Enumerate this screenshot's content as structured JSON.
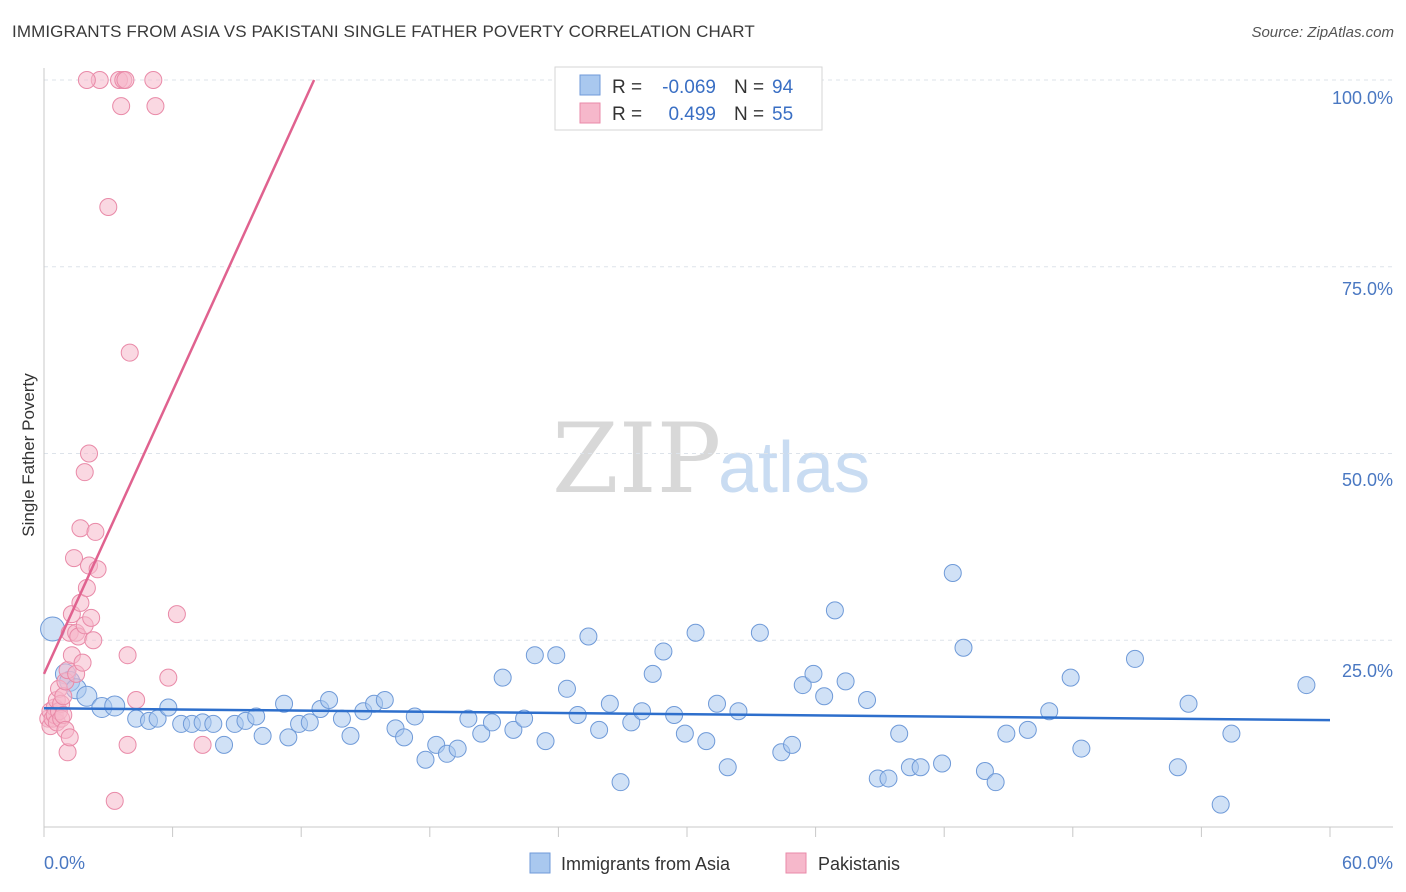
{
  "title": "IMMIGRANTS FROM ASIA VS PAKISTANI SINGLE FATHER POVERTY CORRELATION CHART",
  "source": "Source: ZipAtlas.com",
  "watermark": {
    "zip": "ZIP",
    "atlas": "atlas"
  },
  "colors": {
    "blue_fill": "#a9c8ef",
    "blue_stroke": "#6f9ad8",
    "blue_line": "#2e6fcc",
    "pink_fill": "#f6b8cb",
    "pink_stroke": "#e98aa8",
    "pink_line": "#e0628f",
    "grid": "#dde3ea",
    "tick_text": "#4a78c2"
  },
  "legend": {
    "rows": [
      {
        "r_label": "R =",
        "r_value": "-0.069",
        "n_label": "N =",
        "n_value": "94"
      },
      {
        "r_label": "R =",
        "r_value": "0.499",
        "n_label": "N =",
        "n_value": "55"
      }
    ]
  },
  "chart_data": {
    "type": "scatter",
    "title": "IMMIGRANTS FROM ASIA VS PAKISTANI SINGLE FATHER POVERTY CORRELATION CHART",
    "xlabel": "",
    "ylabel": "Single Father Poverty",
    "xlim": [
      0,
      60
    ],
    "ylim": [
      0,
      100
    ],
    "x_tick_labels": [
      "0.0%",
      "60.0%"
    ],
    "y_tick_labels": [
      "25.0%",
      "50.0%",
      "75.0%",
      "100.0%"
    ],
    "y_ticks": [
      25,
      50,
      75,
      100
    ],
    "legend_position": "bottom-center",
    "series": [
      {
        "name": "Immigrants from Asia",
        "r": -0.069,
        "n": 94,
        "trend": {
          "x": [
            0,
            60
          ],
          "y": [
            15.9,
            14.3
          ]
        },
        "points": [
          [
            0.4,
            26.5
          ],
          [
            1.0,
            20.5
          ],
          [
            1.2,
            19.5
          ],
          [
            1.5,
            18.5
          ],
          [
            2.0,
            17.5
          ],
          [
            2.7,
            16.0
          ],
          [
            3.3,
            16.2
          ],
          [
            4.3,
            14.5
          ],
          [
            4.9,
            14.2
          ],
          [
            5.3,
            14.5
          ],
          [
            5.8,
            16.0
          ],
          [
            6.4,
            13.8
          ],
          [
            6.9,
            13.8
          ],
          [
            7.4,
            14.0
          ],
          [
            7.9,
            13.8
          ],
          [
            8.4,
            11.0
          ],
          [
            8.9,
            13.8
          ],
          [
            9.4,
            14.2
          ],
          [
            9.9,
            14.8
          ],
          [
            10.2,
            12.2
          ],
          [
            11.2,
            16.5
          ],
          [
            11.4,
            12.0
          ],
          [
            11.9,
            13.8
          ],
          [
            12.4,
            14.0
          ],
          [
            12.9,
            15.8
          ],
          [
            13.3,
            17.0
          ],
          [
            13.9,
            14.5
          ],
          [
            14.3,
            12.2
          ],
          [
            14.9,
            15.5
          ],
          [
            15.4,
            16.5
          ],
          [
            15.9,
            17.0
          ],
          [
            16.4,
            13.2
          ],
          [
            16.8,
            12.0
          ],
          [
            17.3,
            14.8
          ],
          [
            17.8,
            9.0
          ],
          [
            18.3,
            11.0
          ],
          [
            18.8,
            9.8
          ],
          [
            19.3,
            10.5
          ],
          [
            19.8,
            14.5
          ],
          [
            20.4,
            12.5
          ],
          [
            20.9,
            14.0
          ],
          [
            21.4,
            20.0
          ],
          [
            21.9,
            13.0
          ],
          [
            22.4,
            14.5
          ],
          [
            22.9,
            23.0
          ],
          [
            23.4,
            11.5
          ],
          [
            23.9,
            23.0
          ],
          [
            24.4,
            18.5
          ],
          [
            24.9,
            15.0
          ],
          [
            25.4,
            25.5
          ],
          [
            25.9,
            13.0
          ],
          [
            26.4,
            16.5
          ],
          [
            26.9,
            6.0
          ],
          [
            27.4,
            14.0
          ],
          [
            27.9,
            15.5
          ],
          [
            28.4,
            20.5
          ],
          [
            28.9,
            23.5
          ],
          [
            29.4,
            15.0
          ],
          [
            29.9,
            12.5
          ],
          [
            30.4,
            26.0
          ],
          [
            30.9,
            11.5
          ],
          [
            31.4,
            16.5
          ],
          [
            31.9,
            8.0
          ],
          [
            32.4,
            15.5
          ],
          [
            33.4,
            26.0
          ],
          [
            34.4,
            10.0
          ],
          [
            34.9,
            11.0
          ],
          [
            35.4,
            19.0
          ],
          [
            35.9,
            20.5
          ],
          [
            36.4,
            17.5
          ],
          [
            36.9,
            29.0
          ],
          [
            37.4,
            19.5
          ],
          [
            38.4,
            17.0
          ],
          [
            38.9,
            6.5
          ],
          [
            39.4,
            6.5
          ],
          [
            39.9,
            12.5
          ],
          [
            40.4,
            8.0
          ],
          [
            40.9,
            8.0
          ],
          [
            41.9,
            8.5
          ],
          [
            42.4,
            34.0
          ],
          [
            42.9,
            24.0
          ],
          [
            43.9,
            7.5
          ],
          [
            44.4,
            6.0
          ],
          [
            44.9,
            12.5
          ],
          [
            45.9,
            13.0
          ],
          [
            46.9,
            15.5
          ],
          [
            47.9,
            20.0
          ],
          [
            48.4,
            10.5
          ],
          [
            50.9,
            22.5
          ],
          [
            52.9,
            8.0
          ],
          [
            53.4,
            16.5
          ],
          [
            54.9,
            3.0
          ],
          [
            55.4,
            12.5
          ],
          [
            58.9,
            19.0
          ]
        ]
      },
      {
        "name": "Pakistanis",
        "r": 0.499,
        "n": 55,
        "trend": {
          "x": [
            0,
            12.6
          ],
          "y": [
            20.5,
            100
          ]
        },
        "points": [
          [
            0.2,
            14.5
          ],
          [
            0.3,
            15.5
          ],
          [
            0.3,
            13.5
          ],
          [
            0.4,
            14.5
          ],
          [
            0.5,
            16.0
          ],
          [
            0.5,
            15.0
          ],
          [
            0.6,
            17.0
          ],
          [
            0.6,
            14.0
          ],
          [
            0.7,
            15.5
          ],
          [
            0.7,
            18.5
          ],
          [
            0.8,
            16.5
          ],
          [
            0.8,
            14.5
          ],
          [
            0.9,
            17.5
          ],
          [
            0.9,
            15.0
          ],
          [
            1.0,
            19.5
          ],
          [
            1.0,
            13.0
          ],
          [
            1.1,
            21.0
          ],
          [
            1.1,
            10.0
          ],
          [
            1.2,
            12.0
          ],
          [
            1.2,
            26.0
          ],
          [
            1.3,
            23.0
          ],
          [
            1.3,
            28.5
          ],
          [
            1.4,
            36.0
          ],
          [
            1.5,
            26.0
          ],
          [
            1.5,
            20.5
          ],
          [
            1.6,
            25.5
          ],
          [
            1.7,
            30.0
          ],
          [
            1.7,
            40.0
          ],
          [
            1.8,
            22.0
          ],
          [
            1.9,
            27.0
          ],
          [
            1.9,
            47.5
          ],
          [
            2.0,
            32.0
          ],
          [
            2.1,
            35.0
          ],
          [
            2.1,
            50.0
          ],
          [
            2.2,
            28.0
          ],
          [
            2.3,
            25.0
          ],
          [
            2.4,
            39.5
          ],
          [
            2.5,
            34.5
          ],
          [
            2.6,
            100.0
          ],
          [
            2.0,
            100.0
          ],
          [
            3.0,
            83.0
          ],
          [
            3.3,
            3.5
          ],
          [
            3.5,
            100.0
          ],
          [
            3.6,
            96.5
          ],
          [
            3.7,
            100.0
          ],
          [
            3.8,
            100.0
          ],
          [
            3.9,
            11.0
          ],
          [
            3.9,
            23.0
          ],
          [
            4.0,
            63.5
          ],
          [
            4.3,
            17.0
          ],
          [
            5.1,
            100.0
          ],
          [
            5.2,
            96.5
          ],
          [
            5.8,
            20.0
          ],
          [
            6.2,
            28.5
          ],
          [
            7.4,
            11.0
          ]
        ]
      }
    ]
  },
  "axis": {
    "ylabel": "Single Father Poverty",
    "x_min_label": "0.0%",
    "x_max_label": "60.0%",
    "y_labels": [
      "25.0%",
      "50.0%",
      "75.0%",
      "100.0%"
    ]
  },
  "bottom_legend": [
    {
      "label": "Immigrants from Asia"
    },
    {
      "label": "Pakistanis"
    }
  ]
}
